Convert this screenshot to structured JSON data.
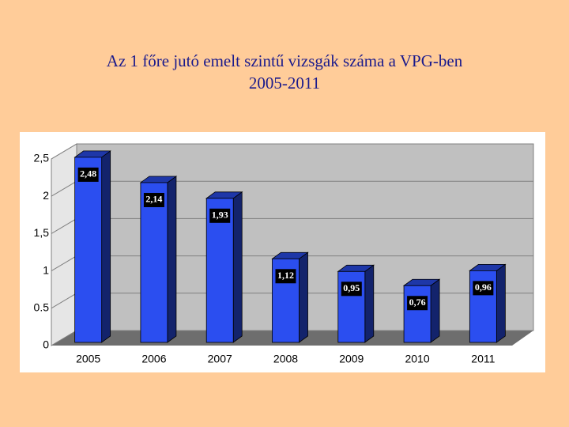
{
  "chart_data": {
    "type": "bar",
    "title": "Az 1 főre jutó emelt szintű vizsgák száma a VPG-ben",
    "subtitle": "2005-2011",
    "categories": [
      "2005",
      "2006",
      "2007",
      "2008",
      "2009",
      "2010",
      "2011"
    ],
    "values": [
      2.48,
      2.14,
      1.93,
      1.12,
      0.95,
      0.76,
      0.96
    ],
    "value_labels": [
      "2,48",
      "2,14",
      "1,93",
      "1,12",
      "0,95",
      "0,76",
      "0,96"
    ],
    "color": "#2B4EF0",
    "ylim": [
      0,
      2.5
    ],
    "yticks": [
      0,
      0.5,
      1,
      {
        "value": 1.5,
        "label": "1,5"
      },
      2,
      {
        "value": 2.5,
        "label": "2,5"
      }
    ],
    "grid": true
  }
}
